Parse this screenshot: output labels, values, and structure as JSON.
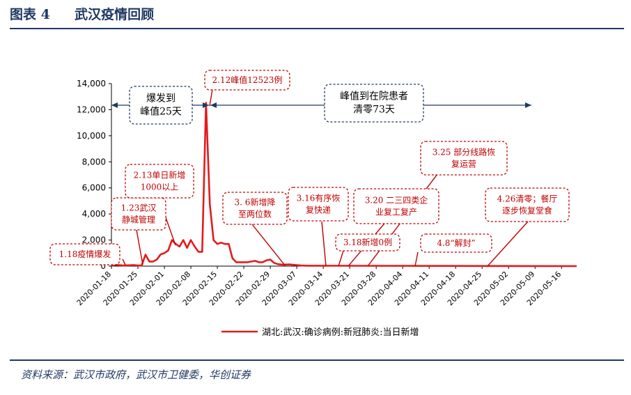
{
  "header": {
    "figure_no": "图表 4",
    "title": "武汉疫情回顾"
  },
  "source": "资料来源：武汉市政府，武汉市卫健委，华创证券",
  "chart_data": {
    "type": "line",
    "series": [
      {
        "name": "湖北:武汉:确诊病例:新冠肺炎:当日新增",
        "color": "#e41a1c"
      }
    ],
    "x": [
      "2020-01-18",
      "2020-01-19",
      "2020-01-20",
      "2020-01-21",
      "2020-01-22",
      "2020-01-23",
      "2020-01-24",
      "2020-01-25",
      "2020-01-26",
      "2020-01-27",
      "2020-01-28",
      "2020-01-29",
      "2020-01-30",
      "2020-01-31",
      "2020-02-01",
      "2020-02-02",
      "2020-02-03",
      "2020-02-04",
      "2020-02-05",
      "2020-02-06",
      "2020-02-07",
      "2020-02-08",
      "2020-02-09",
      "2020-02-10",
      "2020-02-11",
      "2020-02-12",
      "2020-02-13",
      "2020-02-14",
      "2020-02-15",
      "2020-02-16",
      "2020-02-17",
      "2020-02-18",
      "2020-02-19",
      "2020-02-20",
      "2020-02-21",
      "2020-02-22",
      "2020-02-23",
      "2020-02-24",
      "2020-02-25",
      "2020-02-26",
      "2020-02-27",
      "2020-02-28",
      "2020-02-29",
      "2020-03-01",
      "2020-03-02",
      "2020-03-03",
      "2020-03-04",
      "2020-03-05",
      "2020-03-06",
      "2020-03-07",
      "2020-03-08",
      "2020-03-09",
      "2020-03-10"
    ],
    "values": [
      20,
      100,
      80,
      50,
      60,
      70,
      80,
      50,
      50,
      880,
      350,
      350,
      500,
      900,
      1000,
      1200,
      2000,
      1700,
      1500,
      2000,
      1400,
      2000,
      1500,
      1100,
      1100,
      12523,
      4800,
      2000,
      1700,
      1800,
      1700,
      1700,
      600,
      300,
      300,
      300,
      300,
      350,
      400,
      300,
      300,
      450,
      500,
      250,
      150,
      120,
      120,
      130,
      100,
      80,
      50,
      40,
      30
    ],
    "x_ticks": [
      "2020-01-18",
      "2020-01-25",
      "2020-02-01",
      "2020-02-08",
      "2020-02-15",
      "2020-02-22",
      "2020-02-29",
      "2020-03-07",
      "2020-03-14",
      "2020-03-21",
      "2020-03-28",
      "2020-04-04",
      "2020-04-11",
      "2020-04-18",
      "2020-04-25",
      "2020-05-02",
      "2020-05-09",
      "2020-05-16"
    ],
    "x_range": [
      "2020-01-18",
      "2020-05-20"
    ],
    "y_ticks": [
      "0",
      "2,000",
      "4,000",
      "6,000",
      "8,000",
      "10,000",
      "12,000",
      "14,000"
    ],
    "ylim": [
      0,
      14000
    ],
    "legend": "bottom",
    "annotations": {
      "a1": "1.18疫情爆发",
      "a2": [
        "1.23武汉",
        "静城管理"
      ],
      "a3": [
        "2.13单日新增",
        "1000以上"
      ],
      "a4": "2.12峰值12523例",
      "a5": [
        "3. 6新增降",
        "至两位数"
      ],
      "a6": [
        "3.16有序恢",
        "复快递"
      ],
      "a7": [
        "3.20 二三四类企",
        "业复工复产"
      ],
      "a8": "3.18新增0例",
      "a9": [
        "3.25 部分线路恢",
        "复运营"
      ],
      "a10": "4.8“解封”",
      "a11": [
        "4.26清零；餐厅",
        "逐步恢复堂食"
      ],
      "b1": [
        "爆发到",
        "峰值25天"
      ],
      "b2": [
        "峰值到在院患者",
        "清零73天"
      ]
    }
  }
}
